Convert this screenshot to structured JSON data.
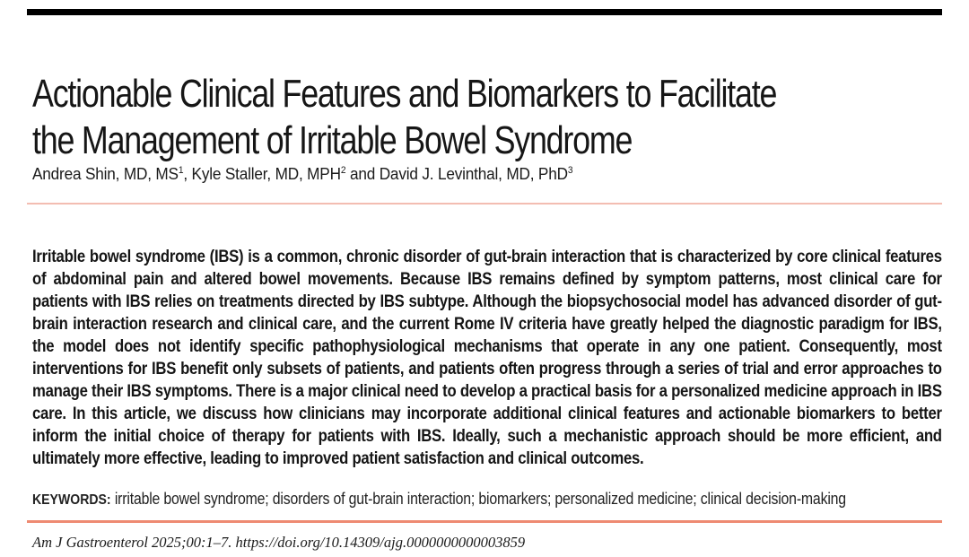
{
  "page": {
    "title_lines": [
      "Actionable Clinical Features and Biomarkers to Facilitate",
      "the Management of Irritable Bowel Syndrome"
    ],
    "authors": [
      {
        "name": "Andrea Shin, MD, MS",
        "sup": "1",
        "sep": ", "
      },
      {
        "name": "Kyle Staller, MD, MPH",
        "sup": "2",
        "sep": " and "
      },
      {
        "name": "David J. Levinthal, MD, PhD",
        "sup": "3",
        "sep": ""
      }
    ],
    "abstract": "Irritable bowel syndrome (IBS) is a common, chronic disorder of gut-brain interaction that is characterized by core clinical features of abdominal pain and altered bowel movements. Because IBS remains defined by symptom patterns, most clinical care for patients with IBS relies on treatments directed by IBS subtype. Although the biopsychosocial model has advanced disorder of gut-brain interaction research and clinical care, and the current Rome IV criteria have greatly helped the diagnostic paradigm for IBS, the model does not identify specific pathophysiological mechanisms that operate in any one patient. Consequently, most interventions for IBS benefit only subsets of patients, and patients often progress through a series of trial and error approaches to manage their IBS symptoms. There is a major clinical need to develop a practical basis for a personalized medicine approach in IBS care. In this article, we discuss how clinicians may incorporate additional clinical features and actionable biomarkers to better inform the initial choice of therapy for patients with IBS. Ideally, such a mechanistic approach should be more efficient, and ultimately more effective, leading to improved patient satisfaction and clinical outcomes.",
    "keywords_label": "KEYWORDS:",
    "keywords": " irritable bowel syndrome; disorders of gut-brain interaction; biomarkers; personalized medicine; clinical decision-making",
    "citation_prefix": "Am J Gastroenterol 2025;00:1–7. ",
    "doi": "https://doi.org/10.14309/ajg.0000000000003859",
    "colors": {
      "top_bar": "#000000",
      "rule_light": "#f3bdb2",
      "rule_accent": "#ee8a72"
    }
  }
}
